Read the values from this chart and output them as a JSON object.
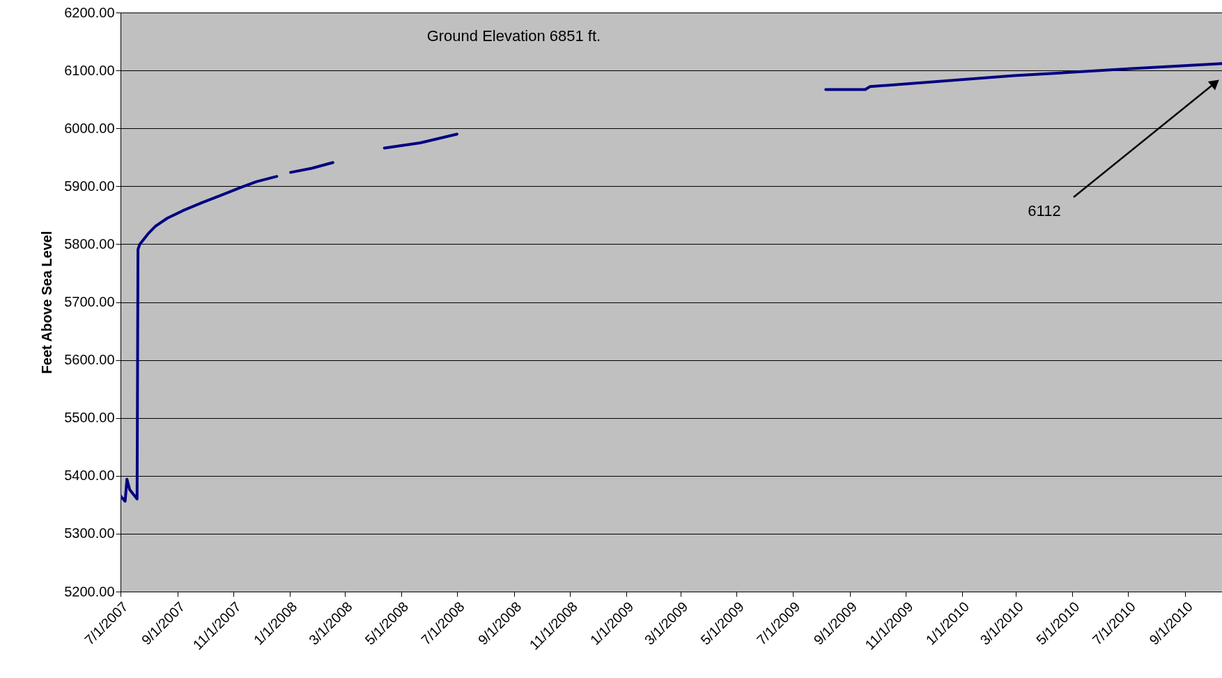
{
  "chart_data": {
    "type": "line",
    "ylabel": "Feet Above Sea Level",
    "x": [
      "2007-07-01",
      "2007-07-06",
      "2007-07-08",
      "2007-07-11",
      "2007-07-19",
      "2007-07-20",
      "2007-07-22",
      "2007-07-31",
      "2007-08-08",
      "2007-08-21",
      "2007-09-07",
      "2007-09-28",
      "2007-10-19",
      "2007-11-09",
      "2007-11-26",
      "2007-12-18",
      "2007-12-25",
      "2008-01-02",
      "2008-01-25",
      "2008-02-17",
      "2008-03-15",
      "2008-04-13",
      "2008-05-22",
      "2008-07-01",
      "2009-01-01",
      "2009-08-06",
      "2009-09-18",
      "2009-09-23",
      "2010-02-27",
      "2010-07-04",
      "2010-10-11"
    ],
    "series": [
      {
        "color": "#000080",
        "values": [
          5365,
          5356,
          5394,
          5376,
          5360,
          5791,
          5800,
          5818,
          5831,
          5845,
          5858,
          5872,
          5885,
          5898,
          5908,
          5917,
          null,
          5924,
          5931,
          5941,
          null,
          5966,
          5975,
          5990,
          null,
          6067,
          6067,
          6072,
          6091,
          6103,
          6112
        ]
      }
    ],
    "xlim": [
      "2007-07-01",
      "2010-10-11"
    ],
    "xticks": [
      {
        "value": "2007-07-01",
        "label": "7/1/2007"
      },
      {
        "value": "2007-09-01",
        "label": "9/1/2007"
      },
      {
        "value": "2007-11-01",
        "label": "11/1/2007"
      },
      {
        "value": "2008-01-01",
        "label": "1/1/2008"
      },
      {
        "value": "2008-03-01",
        "label": "3/1/2008"
      },
      {
        "value": "2008-05-01",
        "label": "5/1/2008"
      },
      {
        "value": "2008-07-01",
        "label": "7/1/2008"
      },
      {
        "value": "2008-09-01",
        "label": "9/1/2008"
      },
      {
        "value": "2008-11-01",
        "label": "11/1/2008"
      },
      {
        "value": "2009-01-01",
        "label": "1/1/2009"
      },
      {
        "value": "2009-03-01",
        "label": "3/1/2009"
      },
      {
        "value": "2009-05-01",
        "label": "5/1/2009"
      },
      {
        "value": "2009-07-01",
        "label": "7/1/2009"
      },
      {
        "value": "2009-09-01",
        "label": "9/1/2009"
      },
      {
        "value": "2009-11-01",
        "label": "11/1/2009"
      },
      {
        "value": "2010-01-01",
        "label": "1/1/2010"
      },
      {
        "value": "2010-03-01",
        "label": "3/1/2010"
      },
      {
        "value": "2010-05-01",
        "label": "5/1/2010"
      },
      {
        "value": "2010-07-01",
        "label": "7/1/2010"
      },
      {
        "value": "2010-09-01",
        "label": "9/1/2010"
      }
    ],
    "ylim": [
      5200,
      6200
    ],
    "yticks": [
      {
        "value": 5200,
        "label": "5200.00"
      },
      {
        "value": 5300,
        "label": "5300.00"
      },
      {
        "value": 5400,
        "label": "5400.00"
      },
      {
        "value": 5500,
        "label": "5500.00"
      },
      {
        "value": 5600,
        "label": "5600.00"
      },
      {
        "value": 5700,
        "label": "5700.00"
      },
      {
        "value": 5800,
        "label": "5800.00"
      },
      {
        "value": 5900,
        "label": "5900.00"
      },
      {
        "value": 6000,
        "label": "6000.00"
      },
      {
        "value": 6100,
        "label": "6100.00"
      },
      {
        "value": 6200,
        "label": "6200.00"
      }
    ],
    "grid": "y",
    "line_style": "solid",
    "marker": "none",
    "annotations": [
      "Ground Elevation 6851 ft.",
      "6112"
    ]
  }
}
